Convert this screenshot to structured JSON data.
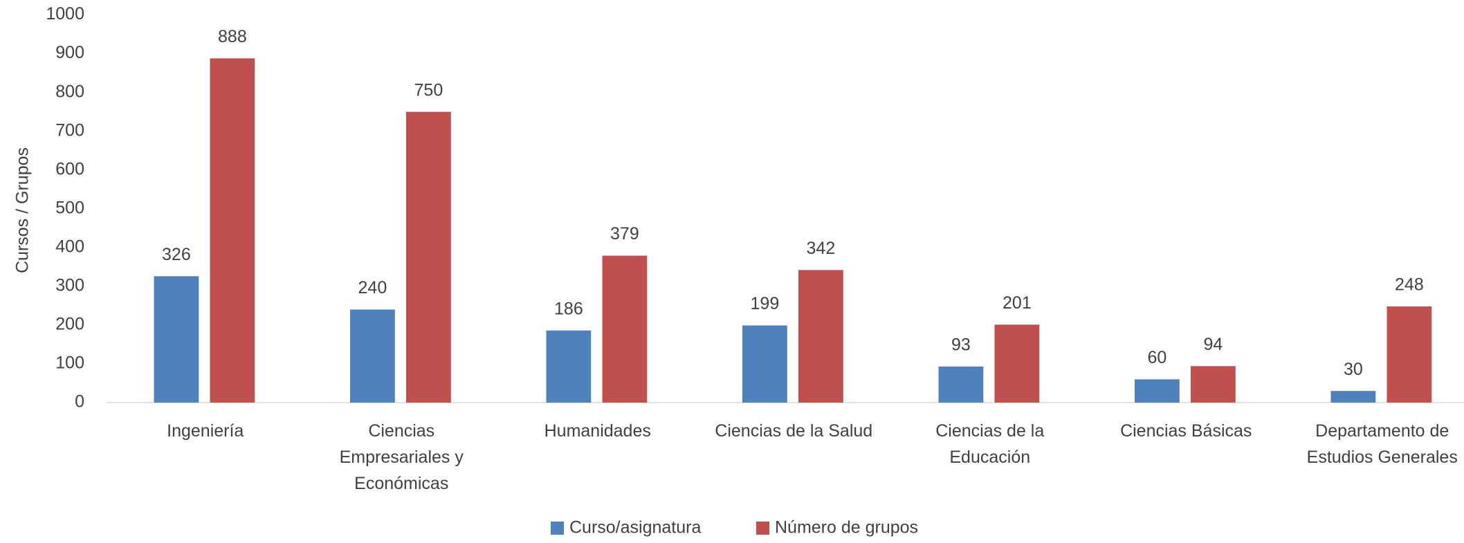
{
  "chart_data": {
    "type": "bar",
    "y_axis_label": "Cursos / Grupos",
    "categories": [
      "Ingeniería",
      "Ciencias\nEmpresariales y\nEconómicas",
      "Humanidades",
      "Ciencias de la Salud",
      "Ciencias de la\nEducación",
      "Ciencias Básicas",
      "Departamento de\nEstudios Generales"
    ],
    "series": [
      {
        "name": "Curso/asignatura",
        "color": "#4f81bd",
        "values": [
          326,
          240,
          186,
          199,
          93,
          60,
          30
        ]
      },
      {
        "name": "Número de grupos",
        "color": "#c0504d",
        "values": [
          888,
          750,
          379,
          342,
          201,
          94,
          248
        ]
      }
    ],
    "ylim": [
      0,
      1000
    ],
    "yticks": [
      0,
      100,
      200,
      300,
      400,
      500,
      600,
      700,
      800,
      900,
      1000
    ],
    "grid": false,
    "legend": "bottom"
  }
}
